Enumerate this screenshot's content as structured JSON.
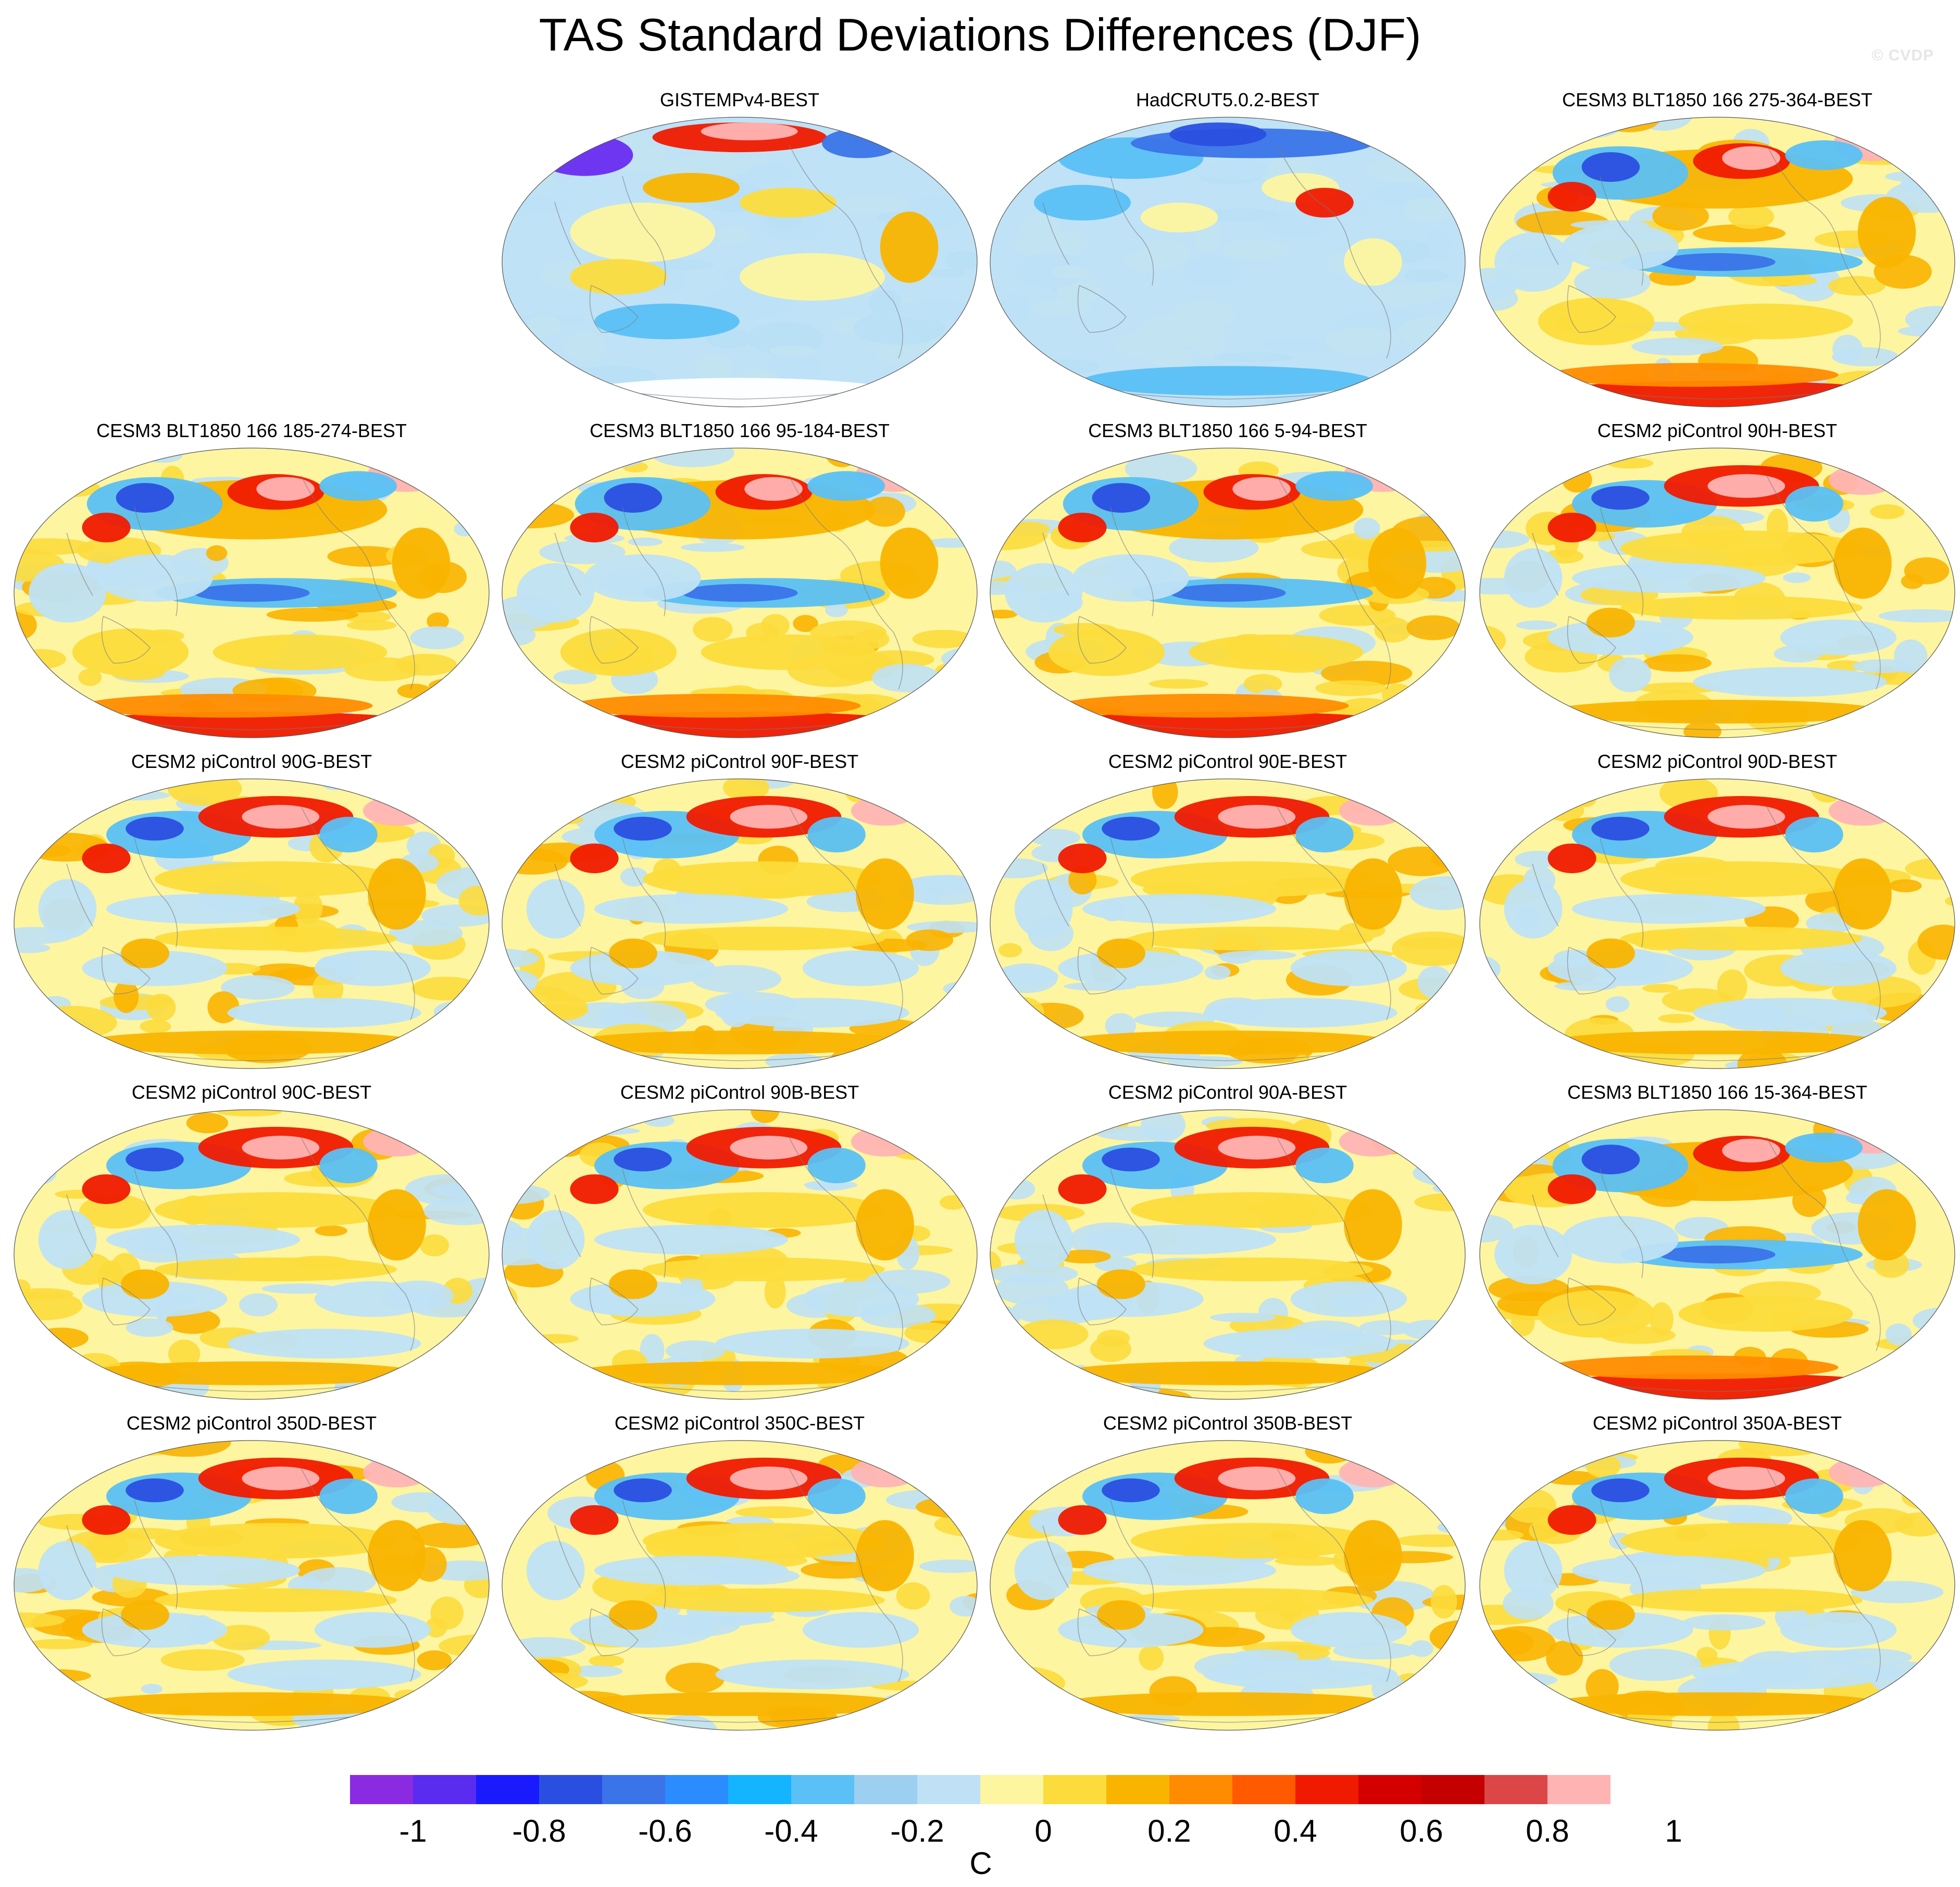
{
  "title": "TAS Standard Deviations Differences (DJF)",
  "watermark": "© CVDP",
  "panels": [
    {
      "label": "GISTEMPv4-BEST",
      "style": "gistemp"
    },
    {
      "label": "HadCRUT5.0.2-BEST",
      "style": "hadcrut"
    },
    {
      "label": "CESM3 BLT1850 166 275-364-BEST",
      "style": "cesm3"
    },
    {
      "label": "CESM3 BLT1850 166 185-274-BEST",
      "style": "cesm3"
    },
    {
      "label": "CESM3 BLT1850 166 95-184-BEST",
      "style": "cesm3"
    },
    {
      "label": "CESM3 BLT1850 166 5-94-BEST",
      "style": "cesm3"
    },
    {
      "label": "CESM2 piControl 90H-BEST",
      "style": "cesm2"
    },
    {
      "label": "CESM2 piControl 90G-BEST",
      "style": "cesm2"
    },
    {
      "label": "CESM2 piControl 90F-BEST",
      "style": "cesm2"
    },
    {
      "label": "CESM2 piControl 90E-BEST",
      "style": "cesm2"
    },
    {
      "label": "CESM2 piControl 90D-BEST",
      "style": "cesm2"
    },
    {
      "label": "CESM2 piControl 90C-BEST",
      "style": "cesm2"
    },
    {
      "label": "CESM2 piControl 90B-BEST",
      "style": "cesm2"
    },
    {
      "label": "CESM2 piControl 90A-BEST",
      "style": "cesm2"
    },
    {
      "label": "CESM3 BLT1850 166 15-364-BEST",
      "style": "cesm3"
    },
    {
      "label": "CESM2 piControl 350D-BEST",
      "style": "cesm2"
    },
    {
      "label": "CESM2 piControl 350C-BEST",
      "style": "cesm2"
    },
    {
      "label": "CESM2 piControl 350B-BEST",
      "style": "cesm2"
    },
    {
      "label": "CESM2 piControl 350A-BEST",
      "style": "cesm2"
    }
  ],
  "colorbar": {
    "units": "C",
    "labels": [
      "-1",
      "-0.8",
      "-0.6",
      "-0.4",
      "-0.2",
      "0",
      "0.2",
      "0.4",
      "0.6",
      "0.8",
      "1"
    ],
    "colors": [
      "#8a2be2",
      "#5a2cf0",
      "#1a1aff",
      "#2a4fe0",
      "#3a74e8",
      "#2b8cff",
      "#14b4ff",
      "#5ac0f5",
      "#9ccff0",
      "#bfe1f5",
      "#fdf5a0",
      "#fcdc3c",
      "#f9b400",
      "#ff8c00",
      "#ff5a00",
      "#f01a00",
      "#d40000",
      "#c40000",
      "#dc4646",
      "#ffb4b4"
    ]
  }
}
